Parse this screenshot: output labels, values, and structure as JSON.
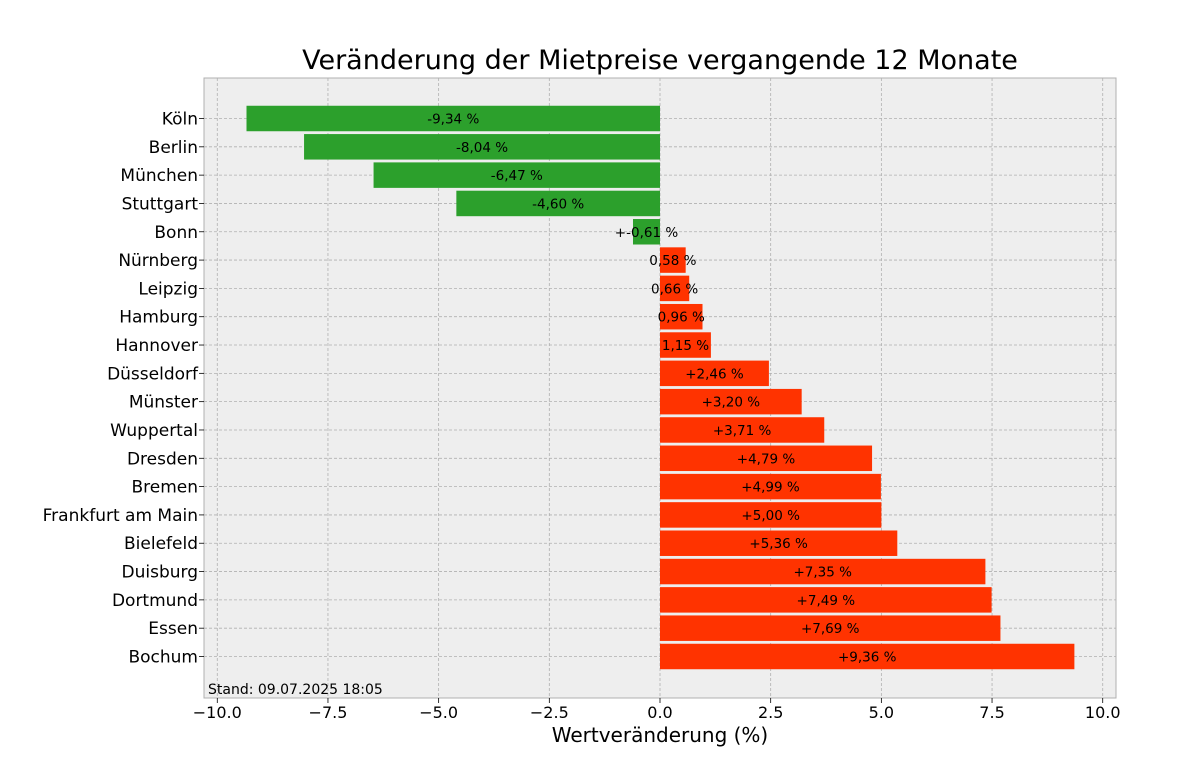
{
  "chart_data": {
    "type": "bar",
    "orientation": "horizontal",
    "title": "Veränderung der Mietpreise vergangende 12 Monate",
    "xlabel": "Wertveränderung (%)",
    "ylabel": "",
    "xlim": [
      -10.3,
      10.3
    ],
    "xticks": [
      -10.0,
      -7.5,
      -5.0,
      -2.5,
      0.0,
      2.5,
      5.0,
      7.5,
      10.0
    ],
    "xtick_labels": [
      "−10.0",
      "−7.5",
      "−5.0",
      "−2.5",
      "0.0",
      "2.5",
      "5.0",
      "7.5",
      "10.0"
    ],
    "grid": true,
    "categories": [
      "Köln",
      "Berlin",
      "München",
      "Stuttgart",
      "Bonn",
      "Nürnberg",
      "Leipzig",
      "Hamburg",
      "Hannover",
      "Düsseldorf",
      "Münster",
      "Wuppertal",
      "Dresden",
      "Bremen",
      "Frankfurt am Main",
      "Bielefeld",
      "Duisburg",
      "Dortmund",
      "Essen",
      "Bochum"
    ],
    "values": [
      -9.34,
      -8.04,
      -6.47,
      -4.6,
      -0.61,
      0.58,
      0.66,
      0.96,
      1.15,
      2.46,
      3.2,
      3.71,
      4.79,
      4.99,
      5.0,
      5.36,
      7.35,
      7.49,
      7.69,
      9.36
    ],
    "data_labels": [
      "-9,34 %",
      "-8,04 %",
      "-6,47 %",
      "-4,60 %",
      "+-0,61 %",
      "0,58 %",
      "0,66 %",
      "0,96 %",
      "1,15 %",
      "+2,46 %",
      "+3,20 %",
      "+3,71 %",
      "+4,79 %",
      "+4,99 %",
      "+5,00 %",
      "+5,36 %",
      "+7,35 %",
      "+7,49 %",
      "+7,69 %",
      "+9,36 %"
    ],
    "colors": {
      "negative": "#2ca02c",
      "positive": "#ff3300",
      "plot_bg": "#eeeeee",
      "grid": "#b0b0b0"
    },
    "annotation": "Stand: 09.07.2025 18:05"
  }
}
